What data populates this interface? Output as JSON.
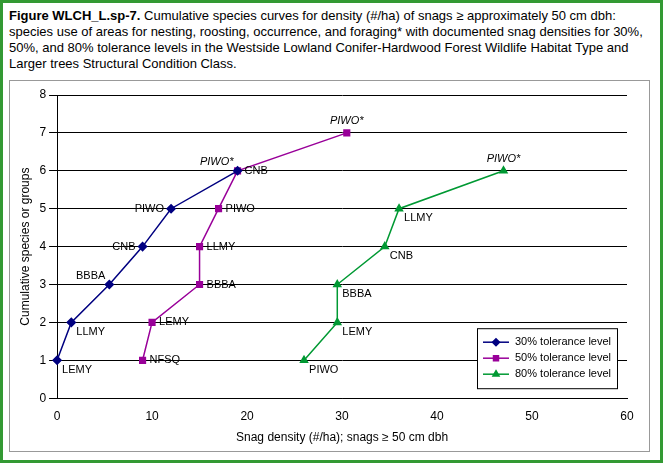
{
  "chart_data": {
    "type": "line",
    "title": "Figure WLCH_L.sp-7. Cumulative species curves for density (#/ha) of snags ≥ approximately 50 cm dbh: species use of areas for nesting, roosting, occurrence, and foraging* with documented snag densities for 30%, 50%, and 80% tolerance levels in the Westside Lowland Conifer-Hardwood Forest Wildlife Habitat Type and Larger trees Structural Condition Class.",
    "x_label": "Snag density (#/ha); snags ≥ 50 cm dbh",
    "y_label": "Cumulative species or groups",
    "xlim": [
      0,
      60
    ],
    "xticks": [
      0,
      10,
      20,
      30,
      40,
      50,
      60
    ],
    "ylim": [
      0,
      8
    ],
    "yticks": [
      0,
      1,
      2,
      3,
      4,
      5,
      6,
      7,
      8
    ],
    "grid": "y",
    "legend": "lower right",
    "series": [
      {
        "name": "30% tolerance level",
        "color": "#000080",
        "marker": "diamond",
        "line_style": "solid",
        "x": [
          0,
          1.5,
          5.5,
          9,
          12,
          19
        ],
        "values": [
          1,
          2,
          3,
          4,
          5,
          6
        ],
        "point_labels": [
          "LEMY",
          "LLMY",
          "BBBA",
          "CNB",
          "PIWO",
          "PIWO*"
        ]
      },
      {
        "name": "50% tolerance level",
        "color": "#990099",
        "marker": "square",
        "line_style": "solid",
        "x": [
          9,
          10,
          15,
          15,
          17,
          19,
          30.5
        ],
        "values": [
          1,
          2,
          3,
          4,
          5,
          6,
          7
        ],
        "point_labels": [
          "NFSQ",
          "LEMY",
          "BBBA",
          "LLMY",
          "PIWO",
          "CNB",
          "PIWO*"
        ]
      },
      {
        "name": "80% tolerance level",
        "color": "#009933",
        "marker": "triangle",
        "line_style": "solid",
        "x": [
          26,
          29.5,
          29.5,
          34.5,
          36,
          47
        ],
        "values": [
          1,
          2,
          3,
          4,
          5,
          6
        ],
        "point_labels": [
          "PIWO",
          "LEMY",
          "BBBA",
          "CNB",
          "LLMY",
          "PIWO*"
        ]
      }
    ]
  }
}
